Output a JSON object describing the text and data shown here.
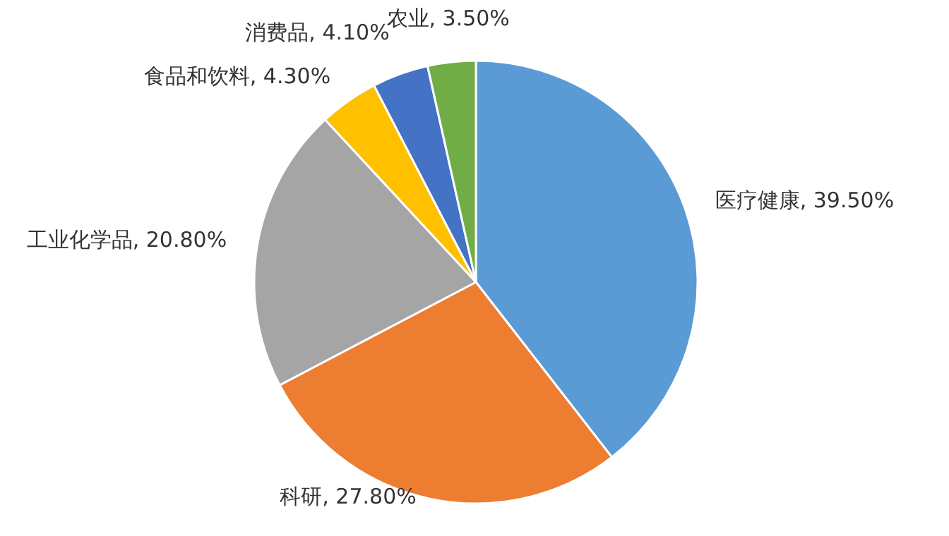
{
  "chart_data": {
    "type": "pie",
    "categories": [
      "医疗健康",
      "科研",
      "工业化学品",
      "食品和饮料",
      "消费品",
      "农业"
    ],
    "values": [
      39.5,
      27.8,
      20.8,
      4.3,
      4.1,
      3.5
    ],
    "value_labels": [
      "39.50%",
      "27.80%",
      "20.80%",
      "4.30%",
      "4.10%",
      "3.50%"
    ],
    "colors": [
      "#5b9bd5",
      "#ed7d31",
      "#a5a5a5",
      "#ffc000",
      "#4472c4",
      "#70ad47"
    ]
  }
}
